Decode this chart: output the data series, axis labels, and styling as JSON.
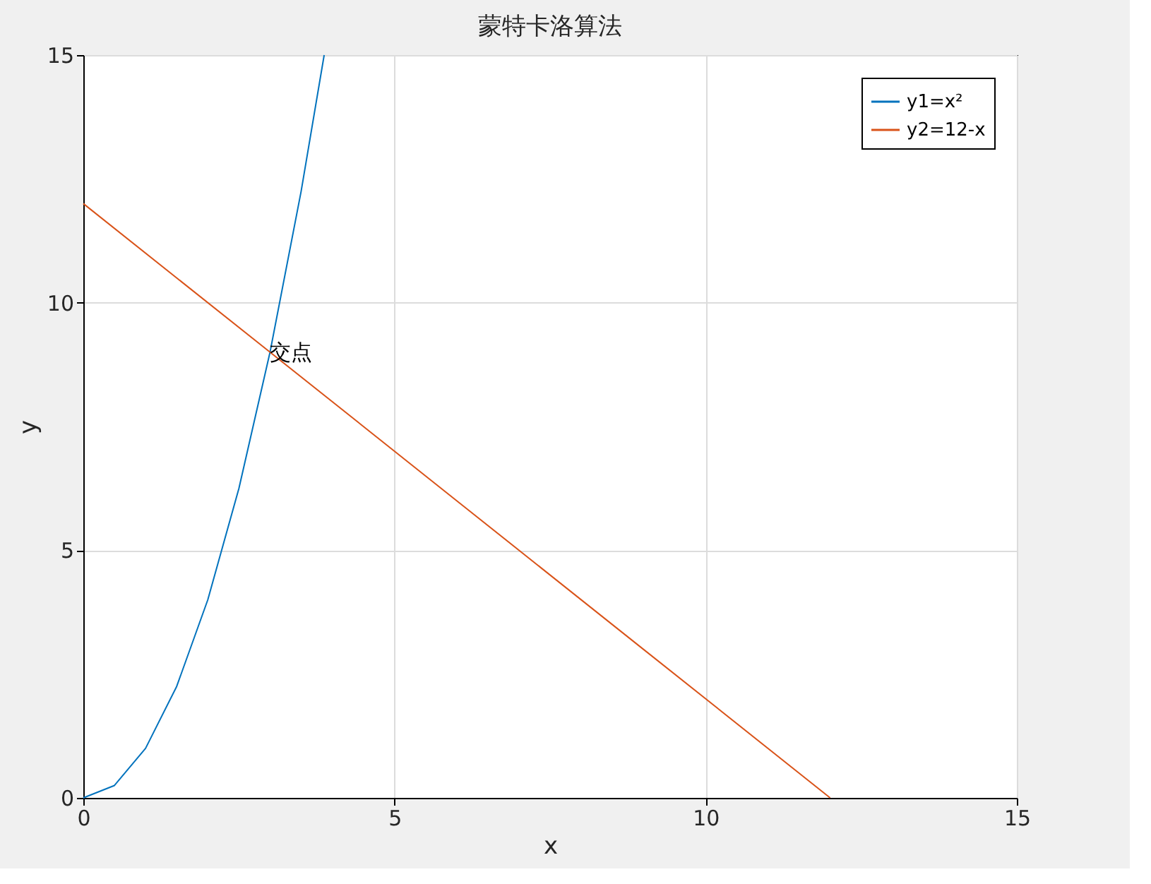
{
  "chart_data": {
    "type": "line",
    "title": "蒙特卡洛算法",
    "xlabel": "x",
    "ylabel": "y",
    "series": [
      {
        "name": "y1=x²",
        "color": "#0072bd",
        "x": [
          0,
          0.5,
          1,
          1.5,
          2,
          2.5,
          3,
          3.5,
          3.87
        ],
        "values": [
          0,
          0.25,
          1,
          2.25,
          4,
          6.25,
          9,
          12.25,
          15
        ]
      },
      {
        "name": "y2=12-x",
        "color": "#d95319",
        "x": [
          0,
          3,
          6,
          9,
          12
        ],
        "values": [
          12,
          9,
          6,
          3,
          0
        ]
      }
    ],
    "annotations": [
      {
        "text": "交点",
        "x": 3,
        "y": 9
      }
    ],
    "xlim": [
      0,
      15
    ],
    "ylim": [
      0,
      15
    ],
    "xticks": [
      0,
      5,
      10,
      15
    ],
    "yticks": [
      0,
      5,
      10,
      15
    ],
    "grid": true,
    "legend": "top right",
    "marker": "none",
    "line_style": "solid"
  }
}
